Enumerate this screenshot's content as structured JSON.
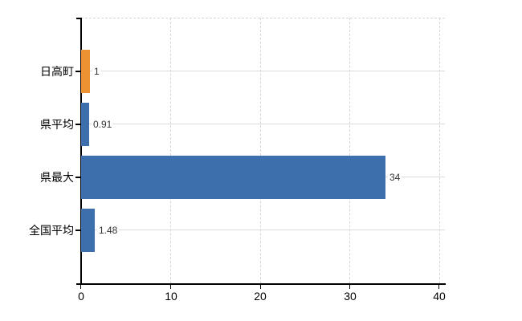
{
  "chart_data": {
    "type": "bar",
    "orientation": "horizontal",
    "title": "",
    "xlabel": "",
    "ylabel": "",
    "categories": [
      "日高町",
      "県平均",
      "県最大",
      "全国平均"
    ],
    "values": [
      1,
      0.91,
      34,
      1.48
    ],
    "value_labels": [
      "1",
      "0.91",
      "34",
      "1.48"
    ],
    "bar_colors": [
      "#ED9233",
      "#3D6FAC",
      "#3D6FAC",
      "#3D6FAC"
    ],
    "x_tick_labels": [
      "0",
      "10",
      "20",
      "30",
      "40"
    ],
    "x_ticks": [
      0,
      10,
      20,
      30,
      40
    ],
    "xlim": [
      0,
      40
    ],
    "legend": "none",
    "grid": {
      "vertical": "dashed",
      "horizontal_row_leader_lines": true
    },
    "colors": {
      "highlight_bar": "#ED9233",
      "default_bar": "#3D6FAC",
      "gridline": "#D6D6D6",
      "row_line": "#D9DCD9",
      "axis": "#000000",
      "value_label_text": "#333333",
      "tick_label_text": "#000000",
      "background": "#FFFFFF"
    }
  }
}
